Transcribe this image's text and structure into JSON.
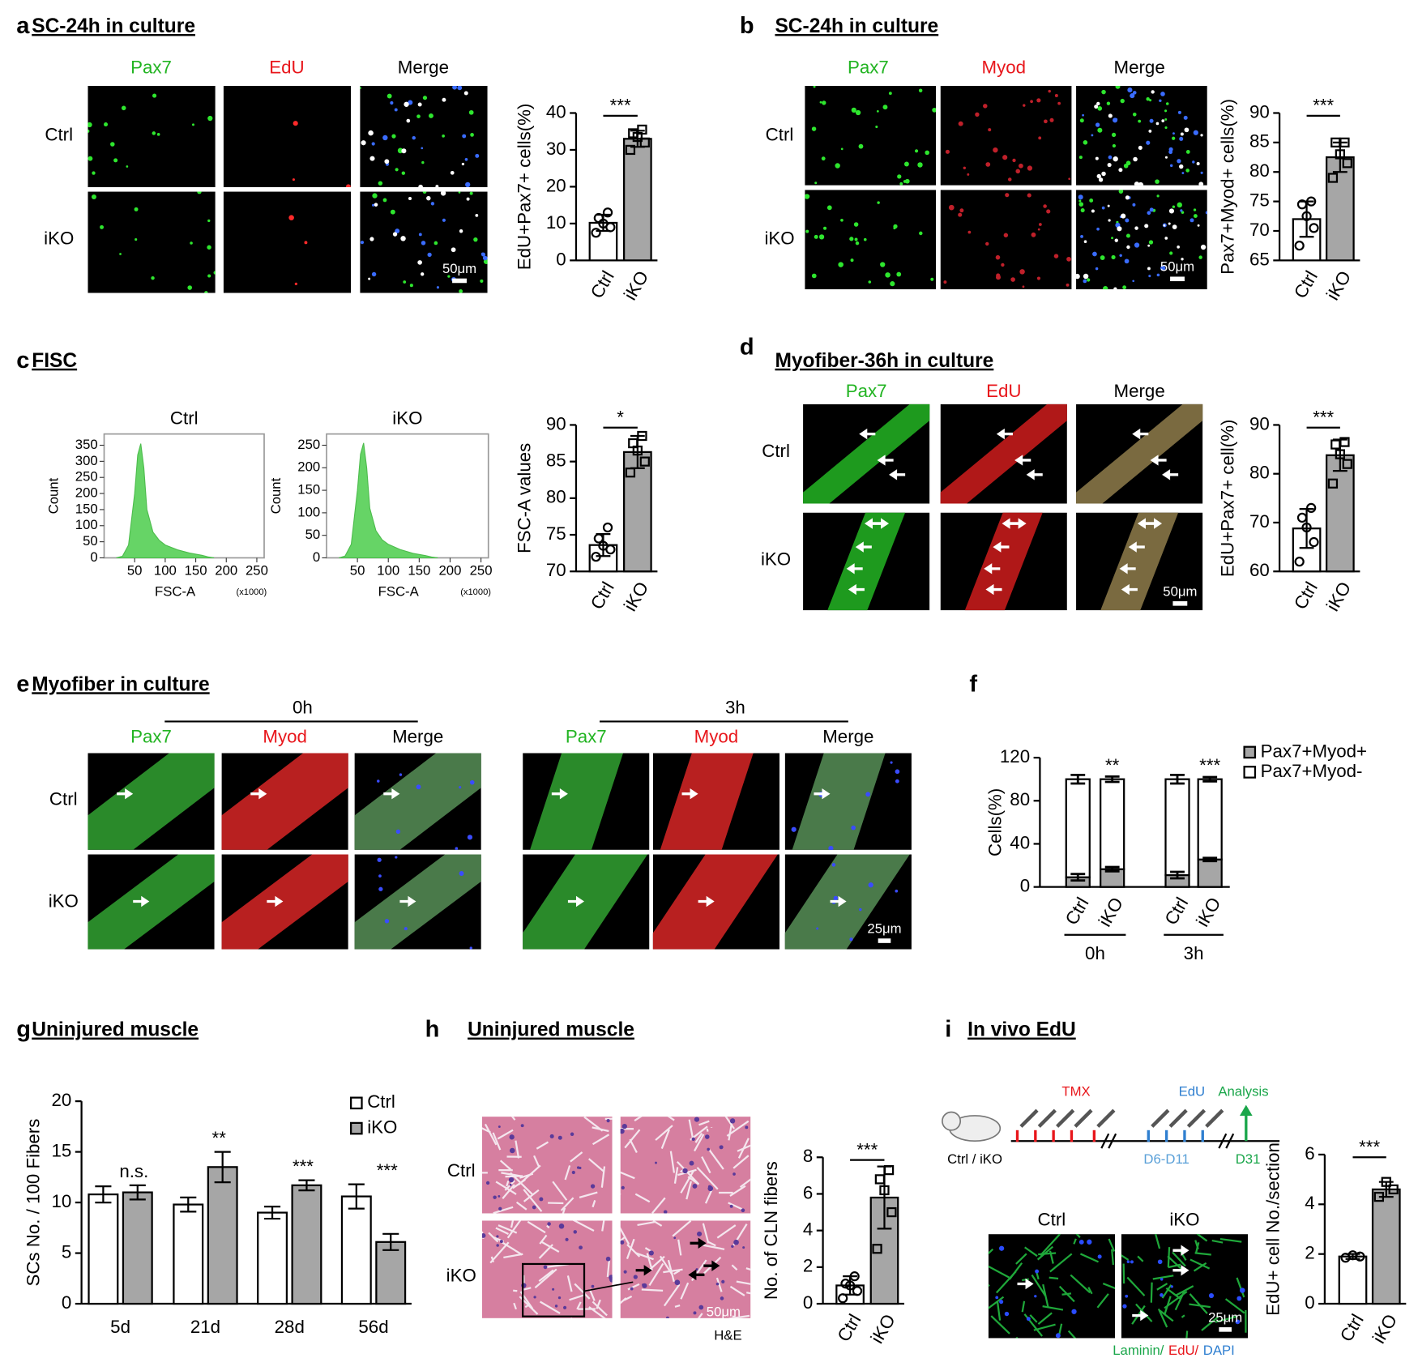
{
  "panels": [
    {
      "letter": "a",
      "title": "SC-24h in culture",
      "columns": [
        "Pax7",
        "EdU",
        "Merge"
      ],
      "column_colors": [
        "#22b422",
        "#e8161b",
        "#000000"
      ],
      "rows": [
        "Ctrl",
        "iKO"
      ],
      "scale_bar": "50μm"
    },
    {
      "letter": "b",
      "title": "SC-24h in culture",
      "columns": [
        "Pax7",
        "Myod",
        "Merge"
      ],
      "column_colors": [
        "#22b422",
        "#e8161b",
        "#000000"
      ],
      "rows": [
        "Ctrl",
        "iKO"
      ],
      "scale_bar": "50μm"
    },
    {
      "letter": "c",
      "title": "FISC"
    },
    {
      "letter": "d",
      "title": "Myofiber-36h in culture",
      "columns": [
        "Pax7",
        "EdU",
        "Merge"
      ],
      "column_colors": [
        "#22b422",
        "#e8161b",
        "#000000"
      ],
      "rows": [
        "Ctrl",
        "iKO"
      ],
      "scale_bar": "50μm"
    },
    {
      "letter": "e",
      "title": "Myofiber in culture",
      "timepoints": [
        "0h",
        "3h"
      ],
      "columns": [
        "Pax7",
        "Myod",
        "Merge"
      ],
      "column_colors": [
        "#22b422",
        "#e8161b",
        "#000000"
      ],
      "rows": [
        "Ctrl",
        "iKO"
      ],
      "scale_bar": "25μm"
    },
    {
      "letter": "f"
    },
    {
      "letter": "g",
      "title": "Uninjured muscle"
    },
    {
      "letter": "h",
      "title": "Uninjured muscle",
      "rows": [
        "Ctrl",
        "iKO"
      ],
      "scale_bar": "50μm",
      "stain": "H&E"
    },
    {
      "letter": "i",
      "title": "In vivo EdU",
      "timeline": {
        "treatment": "TMX",
        "pulse": "EdU",
        "readout": "Analysis",
        "mice": "Ctrl / iKO",
        "pulse_days": "D6-D11",
        "readout_day": "D31"
      },
      "timeline_colors": {
        "treatment": "#e8161b",
        "pulse": "#2f7fd0",
        "readout": "#1aa64a",
        "mice": "#000000",
        "pulse_days": "#5aa0d8",
        "readout_day": "#1aa64a"
      },
      "columns": [
        "Ctrl",
        "iKO"
      ],
      "scale_bar": "25μm",
      "stains": [
        "Laminin/",
        "EdU/",
        "DAPI"
      ],
      "stain_colors": [
        "#1aa64a",
        "#e8161b",
        "#2f7fd0"
      ]
    }
  ],
  "chart_data": [
    {
      "type": "bar",
      "ylabel": "EdU+Pax7+ cells(%)",
      "categories": [
        "Ctrl",
        "iKO"
      ],
      "values": [
        10.2,
        33
      ],
      "errors": [
        2.2,
        2.2
      ],
      "points": [
        [
          7.5,
          9,
          10,
          11.5,
          13
        ],
        [
          30,
          32,
          33.5,
          34.5,
          35.5
        ]
      ],
      "colors": [
        "#ffffff",
        "#a6a6a6"
      ],
      "markers": [
        "circle",
        "square"
      ],
      "ylim": [
        0,
        40
      ],
      "yticks": [
        0,
        10,
        20,
        30,
        40
      ],
      "significance": "***"
    },
    {
      "type": "bar",
      "ylabel": "Pax7+Myod+ cells(%)",
      "categories": [
        "Ctrl",
        "iKO"
      ],
      "values": [
        72,
        82.5
      ],
      "errors": [
        3,
        2.5
      ],
      "points": [
        [
          67.5,
          70.5,
          72.5,
          74.5,
          75
        ],
        [
          79,
          81.5,
          83,
          85,
          85
        ]
      ],
      "colors": [
        "#ffffff",
        "#a6a6a6"
      ],
      "markers": [
        "circle",
        "square"
      ],
      "ylim": [
        65,
        90
      ],
      "yticks": [
        65,
        70,
        75,
        80,
        85,
        90
      ],
      "significance": "***"
    },
    {
      "type": "area",
      "title": "Ctrl",
      "xlabel": "FSC-A",
      "x_unit": "(x1000)",
      "ylabel": "Count",
      "x": [
        20,
        30,
        40,
        50,
        55,
        60,
        65,
        70,
        80,
        90,
        100,
        120,
        140,
        160,
        170,
        180
      ],
      "values": [
        0,
        5,
        40,
        200,
        320,
        355,
        280,
        150,
        80,
        55,
        40,
        25,
        15,
        8,
        3,
        0
      ],
      "color": "#66d466",
      "xlim": [
        0,
        262
      ],
      "ylim": [
        0,
        385
      ],
      "xticks": [
        50,
        100,
        150,
        200,
        250
      ],
      "yticks": [
        0,
        50,
        100,
        150,
        200,
        250,
        300,
        350
      ]
    },
    {
      "type": "area",
      "title": "iKO",
      "xlabel": "FSC-A",
      "x_unit": "(x1000)",
      "ylabel": "Count",
      "x": [
        20,
        30,
        40,
        50,
        55,
        60,
        65,
        70,
        80,
        90,
        100,
        120,
        140,
        160,
        170,
        180
      ],
      "values": [
        0,
        4,
        30,
        150,
        230,
        255,
        200,
        110,
        60,
        40,
        30,
        18,
        10,
        5,
        2,
        0
      ],
      "color": "#66d466",
      "xlim": [
        0,
        262
      ],
      "ylim": [
        0,
        275
      ],
      "xticks": [
        50,
        100,
        150,
        200,
        250
      ],
      "yticks": [
        0,
        50,
        100,
        150,
        200,
        250
      ]
    },
    {
      "type": "bar",
      "ylabel": "FSC-A values",
      "categories": [
        "Ctrl",
        "iKO"
      ],
      "values": [
        73.6,
        86.3
      ],
      "errors": [
        1.5,
        2.2
      ],
      "points": [
        [
          72,
          73,
          73.5,
          74.5,
          76
        ],
        [
          83.5,
          85,
          86.5,
          87.5,
          88.5
        ]
      ],
      "colors": [
        "#ffffff",
        "#a6a6a6"
      ],
      "markers": [
        "circle",
        "square"
      ],
      "ylim": [
        70,
        90
      ],
      "yticks": [
        70,
        75,
        80,
        85,
        90
      ],
      "significance": "*"
    },
    {
      "type": "bar",
      "ylabel": "EdU+Pax7+ cell(%)",
      "categories": [
        "Ctrl",
        "iKO"
      ],
      "values": [
        68.8,
        83.8
      ],
      "errors": [
        4,
        3.2
      ],
      "points": [
        [
          62,
          66,
          69,
          71,
          73
        ],
        [
          78,
          82,
          84,
          86,
          86.5
        ]
      ],
      "colors": [
        "#ffffff",
        "#a6a6a6"
      ],
      "markers": [
        "circle",
        "square"
      ],
      "ylim": [
        60,
        90
      ],
      "yticks": [
        60,
        70,
        80,
        90
      ],
      "significance": "***"
    },
    {
      "type": "stacked_bar",
      "ylabel": "Cells(%)",
      "categories": [
        "Ctrl",
        "iKO",
        "Ctrl",
        "iKO"
      ],
      "groups": [
        "0h",
        "3h"
      ],
      "series": [
        {
          "name": "Pax7+Myod+",
          "color": "#a6a6a6",
          "values": [
            9,
            16.5,
            11,
            25.5
          ],
          "errors": [
            3,
            2,
            3,
            1.5
          ]
        },
        {
          "name": "Pax7+Myod-",
          "color": "#ffffff",
          "values": [
            91,
            83.5,
            89,
            74.5
          ],
          "errors": [
            4,
            2.5,
            4,
            2
          ]
        }
      ],
      "annotations": [
        null,
        "**",
        null,
        "***"
      ],
      "ylim": [
        0,
        120
      ],
      "yticks": [
        0,
        40,
        80,
        120
      ],
      "legend": "upper right"
    },
    {
      "type": "grouped_bar",
      "ylabel": "SCs No. / 100 Fibers",
      "categories": [
        "5d",
        "21d",
        "28d",
        "56d"
      ],
      "series": [
        {
          "name": "Ctrl",
          "color": "#ffffff",
          "values": [
            10.8,
            9.8,
            9.0,
            10.6
          ],
          "errors": [
            0.8,
            0.7,
            0.6,
            1.2
          ]
        },
        {
          "name": "iKO",
          "color": "#a6a6a6",
          "values": [
            11.0,
            13.5,
            11.7,
            6.1
          ],
          "errors": [
            0.7,
            1.5,
            0.5,
            0.8
          ]
        }
      ],
      "annotations": [
        "n.s.",
        "**",
        "***",
        "***"
      ],
      "ylim": [
        0,
        20
      ],
      "yticks": [
        0,
        5,
        10,
        15,
        20
      ],
      "legend": "upper right"
    },
    {
      "type": "bar",
      "ylabel": "No. of CLN fibers",
      "categories": [
        "Ctrl",
        "iKO"
      ],
      "values": [
        1.0,
        5.8
      ],
      "errors": [
        0.5,
        1.7
      ],
      "points": [
        [
          0.3,
          0.7,
          1,
          1.1,
          1.5
        ],
        [
          3,
          5,
          6.2,
          6.8,
          7.3
        ]
      ],
      "colors": [
        "#ffffff",
        "#a6a6a6"
      ],
      "markers": [
        "circle",
        "square"
      ],
      "ylim": [
        0,
        8
      ],
      "yticks": [
        0,
        2,
        4,
        6,
        8
      ],
      "significance": "***"
    },
    {
      "type": "bar",
      "ylabel": "EdU+ cell No./section",
      "categories": [
        "Ctrl",
        "iKO"
      ],
      "values": [
        1.9,
        4.6
      ],
      "errors": [
        0.1,
        0.3
      ],
      "points": [
        [
          1.85,
          1.9,
          1.95
        ],
        [
          4.3,
          4.6,
          4.9
        ]
      ],
      "colors": [
        "#ffffff",
        "#a6a6a6"
      ],
      "markers": [
        "circle",
        "square"
      ],
      "ylim": [
        0,
        6
      ],
      "yticks": [
        0,
        2,
        4,
        6
      ],
      "significance": "***"
    }
  ]
}
